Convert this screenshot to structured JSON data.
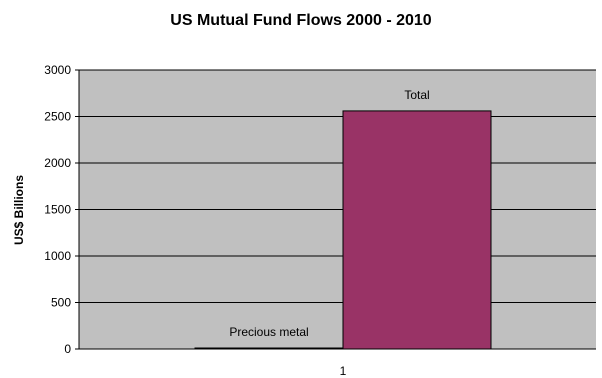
{
  "chart_data": {
    "type": "bar",
    "title": "US Mutual Fund Flows 2000 - 2010",
    "xlabel": "",
    "ylabel": "US$ Billions",
    "categories": [
      "1"
    ],
    "series": [
      {
        "name": "Precious metal",
        "values": [
          10
        ],
        "color": "#000080"
      },
      {
        "name": "Total",
        "values": [
          2560
        ],
        "color": "#993366"
      }
    ],
    "ylim": [
      0,
      3000
    ],
    "yticks": [
      0,
      500,
      1000,
      1500,
      2000,
      2500,
      3000
    ],
    "grid": true,
    "plot_background": "#c0c0c0",
    "legend": "none"
  }
}
